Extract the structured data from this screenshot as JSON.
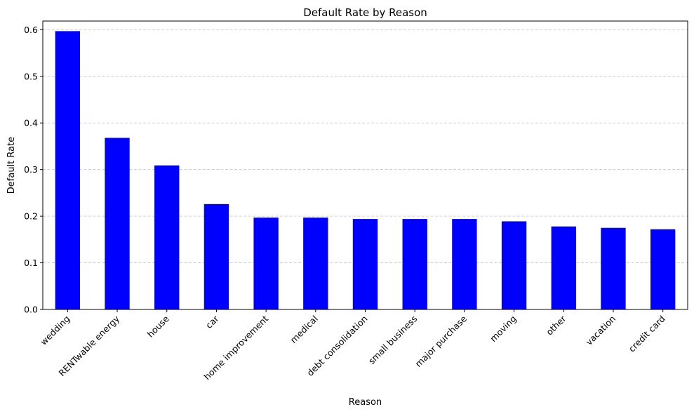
{
  "chart_data": {
    "type": "bar",
    "title": "Default Rate by Reason",
    "xlabel": "Reason",
    "ylabel": "Default Rate",
    "categories": [
      "wedding",
      "RENTwable_energy",
      "house",
      "car",
      "home_improvement",
      "medical",
      "debt_consolidation",
      "small_business",
      "major_purchase",
      "moving",
      "other",
      "vacation",
      "credit_card"
    ],
    "values": [
      0.597,
      0.368,
      0.309,
      0.226,
      0.197,
      0.197,
      0.194,
      0.194,
      0.194,
      0.189,
      0.178,
      0.175,
      0.172
    ],
    "ylim": [
      0,
      0.6186
    ],
    "yticks": [
      0.0,
      0.1,
      0.2,
      0.3,
      0.4,
      0.5,
      0.6
    ],
    "bar_color": "#0000ff",
    "grid": "y-dashed",
    "legend": "none"
  }
}
